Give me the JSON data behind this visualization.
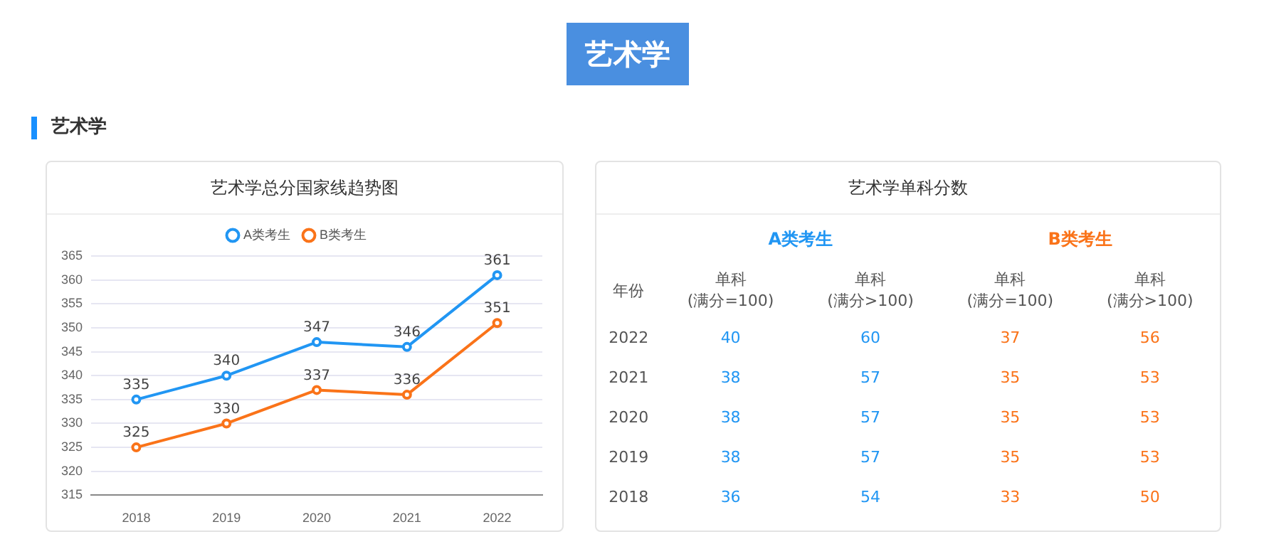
{
  "chart_data": [
    {
      "type": "line",
      "title": "艺术学总分国家线趋势图",
      "annotations": [
        "艺术学",
        "艺术学"
      ],
      "categories": [
        "2018",
        "2019",
        "2020",
        "2021",
        "2022"
      ],
      "series": [
        {
          "name": "A类考生",
          "color": "#2196f3",
          "values": [
            335,
            340,
            347,
            346,
            361
          ]
        },
        {
          "name": "B类考生",
          "color": "#fa7319",
          "values": [
            325,
            330,
            337,
            336,
            351
          ]
        }
      ],
      "ylim": [
        315,
        365
      ],
      "yticks": [
        315,
        320,
        325,
        330,
        335,
        340,
        345,
        350,
        355,
        360,
        365
      ],
      "grid": "y",
      "legend": "top",
      "marker": "circle",
      "data_labels": true
    },
    {
      "type": "heatmap",
      "title": "艺术学单科分数",
      "ylabel": "年份",
      "annotations": [
        "A类考生",
        "B类考生"
      ],
      "categories": [
        "单科\n(满分=100)",
        "单科\n(满分>100)",
        "单科\n(满分=100)",
        "单科\n(满分>100)"
      ],
      "y_categories": [
        "2022",
        "2021",
        "2020",
        "2019",
        "2018"
      ],
      "colors": [
        "#2196f3",
        "#2196f3",
        "#fa7319",
        "#fa7319"
      ],
      "cells": [
        [
          40,
          60,
          37,
          56
        ],
        [
          38,
          57,
          35,
          53
        ],
        [
          38,
          57,
          35,
          53
        ],
        [
          38,
          57,
          35,
          53
        ],
        [
          36,
          54,
          33,
          50
        ]
      ],
      "data_labels": true
    }
  ]
}
